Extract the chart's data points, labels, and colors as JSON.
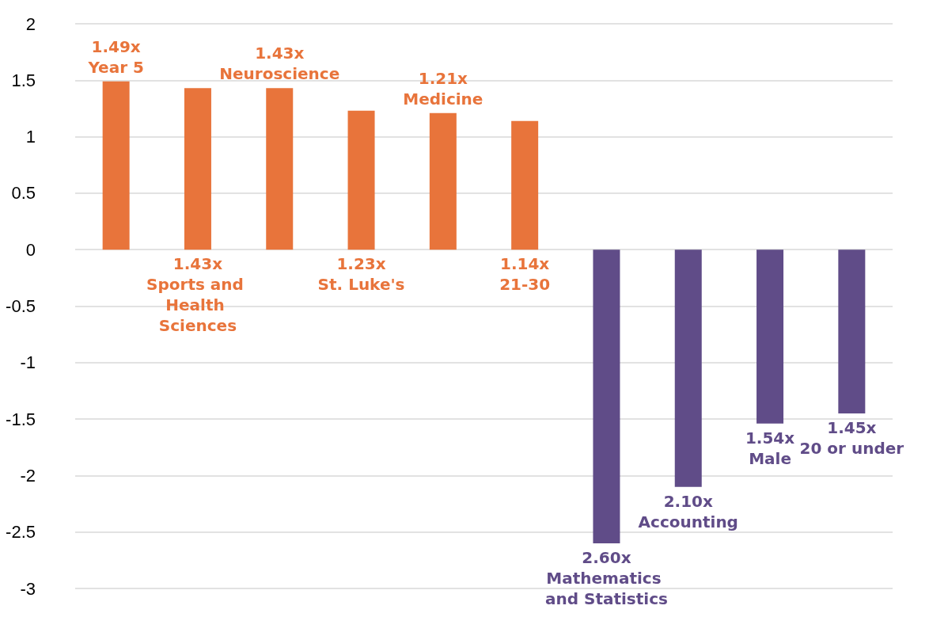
{
  "chart_data": {
    "type": "bar",
    "categories": [
      null,
      null,
      null,
      null,
      null,
      null,
      null,
      null,
      null,
      null
    ],
    "values": [
      1.49,
      1.43,
      1.43,
      1.23,
      1.21,
      1.14,
      -2.6,
      -2.1,
      -1.54,
      -1.45
    ],
    "colors": [
      "#e8743b",
      "#e8743b",
      "#e8743b",
      "#e8743b",
      "#e8743b",
      "#e8743b",
      "#604c88",
      "#604c88",
      "#604c88",
      "#604c88"
    ],
    "annotations": [
      "1.49x Year 5",
      "1.43x Sports and Health Sciences",
      "1.43x Neuroscience",
      "1.23x St. Luke's",
      "1.21x Medicine",
      "1.14x 21-30",
      "2.60x Mathematics and Statistics",
      "2.10x Accounting",
      "1.54x Male",
      "1.45x 20 or under"
    ],
    "ylim": [
      -3,
      2
    ],
    "yticks": [
      -3,
      -2.5,
      -2,
      -1.5,
      -1,
      -0.5,
      0,
      0.5,
      1,
      1.5,
      2
    ],
    "grid": "y",
    "tick_labels": "y"
  }
}
